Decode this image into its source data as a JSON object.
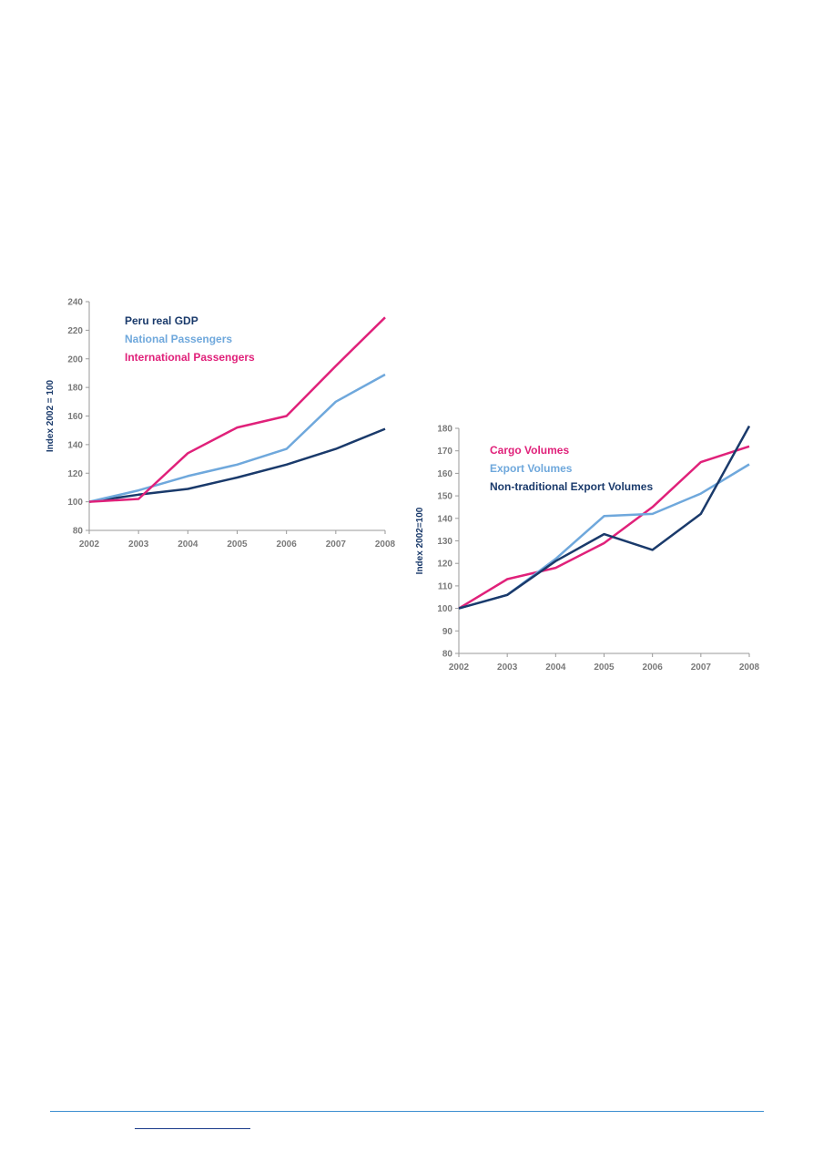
{
  "chart_data": [
    {
      "type": "line",
      "ylabel": "Index 2002 = 100",
      "xlabel": "",
      "x": [
        "2002",
        "2003",
        "2004",
        "2005",
        "2006",
        "2007",
        "2008"
      ],
      "ylim": [
        80,
        240
      ],
      "yticks": [
        80,
        100,
        120,
        140,
        160,
        180,
        200,
        220,
        240
      ],
      "grid": false,
      "legend_position": "top-left",
      "series": [
        {
          "name": "Peru real GDP",
          "color": "#1a3a6b",
          "values": [
            100,
            105,
            109,
            117,
            126,
            137,
            151
          ]
        },
        {
          "name": "National Passengers",
          "color": "#6fa8dc",
          "values": [
            100,
            108,
            118,
            126,
            137,
            170,
            189
          ]
        },
        {
          "name": "International Passengers",
          "color": "#e0217a",
          "values": [
            100,
            102,
            134,
            152,
            160,
            195,
            229
          ]
        }
      ]
    },
    {
      "type": "line",
      "ylabel": "Index 2002=100",
      "xlabel": "",
      "x": [
        "2002",
        "2003",
        "2004",
        "2005",
        "2006",
        "2007",
        "2008"
      ],
      "ylim": [
        80,
        180
      ],
      "yticks": [
        80,
        90,
        100,
        110,
        120,
        130,
        140,
        150,
        160,
        170,
        180
      ],
      "grid": false,
      "legend_position": "top-left",
      "series": [
        {
          "name": "Cargo Volumes",
          "color": "#e0217a",
          "values": [
            100,
            113,
            118,
            129,
            145,
            165,
            172
          ]
        },
        {
          "name": "Export Volumes",
          "color": "#6fa8dc",
          "values": [
            100,
            106,
            122,
            141,
            142,
            151,
            164
          ]
        },
        {
          "name": "Non-traditional Export Volumes",
          "color": "#1a3a6b",
          "values": [
            100,
            106,
            121,
            133,
            126,
            142,
            181
          ]
        }
      ]
    }
  ]
}
